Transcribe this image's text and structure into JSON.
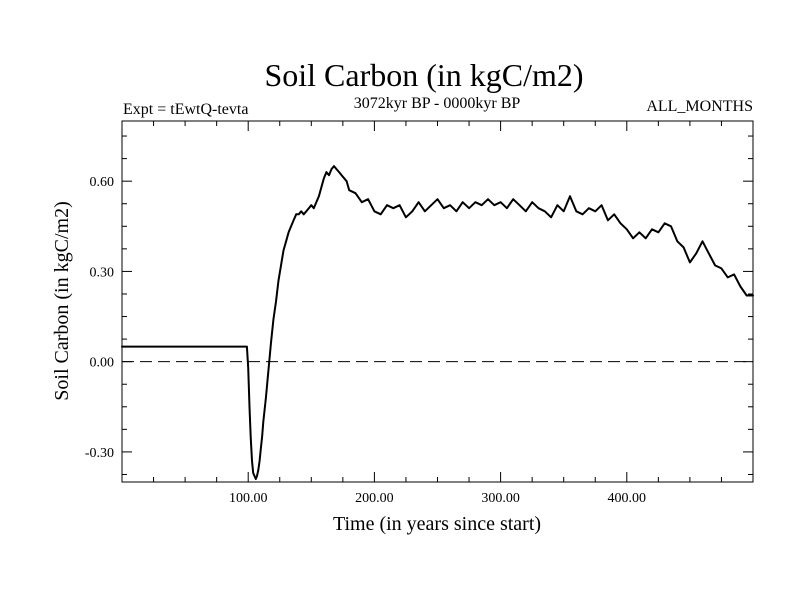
{
  "chart_data": {
    "type": "line",
    "title": "Soil Carbon (in kgC/m2)",
    "subtitle_left": "Expt = tEwtQ-tevta",
    "subtitle_center": "3072kyr BP - 0000kyr BP",
    "subtitle_right": "ALL_MONTHS",
    "xlabel": "Time (in years since start)",
    "ylabel": "Soil Carbon (in kgC/m2)",
    "xlim": [
      0,
      500
    ],
    "ylim": [
      -0.4,
      0.8
    ],
    "xticks": [
      100,
      200,
      300,
      400
    ],
    "xtick_labels": [
      "100.00",
      "200.00",
      "300.00",
      "400.00"
    ],
    "yticks": [
      -0.3,
      0.0,
      0.3,
      0.6
    ],
    "ytick_labels": [
      "-0.30",
      "0.00",
      "0.30",
      "0.60"
    ],
    "reference_line": {
      "y": 0.0,
      "style": "dashed"
    },
    "series": [
      {
        "name": "Soil Carbon",
        "x": [
          0,
          99,
          100,
          101,
          102,
          103,
          104,
          105,
          106,
          107,
          108,
          109,
          110,
          111,
          112,
          114,
          116,
          118,
          120,
          122,
          124,
          126,
          128,
          130,
          132,
          134,
          136,
          138,
          140,
          142,
          144,
          146,
          148,
          150,
          152,
          154,
          156,
          158,
          160,
          162,
          164,
          166,
          168,
          170,
          172,
          174,
          176,
          178,
          180,
          185,
          190,
          195,
          200,
          205,
          210,
          215,
          220,
          225,
          230,
          235,
          240,
          245,
          250,
          255,
          260,
          265,
          270,
          275,
          280,
          285,
          290,
          295,
          300,
          305,
          310,
          315,
          320,
          325,
          330,
          335,
          340,
          345,
          350,
          355,
          360,
          365,
          370,
          375,
          380,
          385,
          390,
          395,
          400,
          405,
          410,
          415,
          420,
          425,
          430,
          435,
          440,
          445,
          450,
          455,
          460,
          465,
          470,
          475,
          480,
          485,
          490,
          495,
          500
        ],
        "values": [
          0.05,
          0.05,
          -0.02,
          -0.15,
          -0.25,
          -0.33,
          -0.37,
          -0.38,
          -0.39,
          -0.38,
          -0.36,
          -0.33,
          -0.29,
          -0.25,
          -0.2,
          -0.12,
          -0.03,
          0.06,
          0.14,
          0.2,
          0.27,
          0.32,
          0.37,
          0.4,
          0.43,
          0.45,
          0.47,
          0.49,
          0.49,
          0.5,
          0.49,
          0.5,
          0.51,
          0.52,
          0.51,
          0.53,
          0.55,
          0.58,
          0.61,
          0.63,
          0.62,
          0.64,
          0.65,
          0.64,
          0.63,
          0.62,
          0.61,
          0.6,
          0.57,
          0.56,
          0.53,
          0.54,
          0.5,
          0.49,
          0.52,
          0.51,
          0.52,
          0.48,
          0.5,
          0.53,
          0.5,
          0.52,
          0.54,
          0.51,
          0.52,
          0.5,
          0.53,
          0.51,
          0.53,
          0.52,
          0.54,
          0.52,
          0.53,
          0.51,
          0.54,
          0.52,
          0.5,
          0.53,
          0.51,
          0.5,
          0.48,
          0.52,
          0.5,
          0.55,
          0.5,
          0.49,
          0.51,
          0.5,
          0.52,
          0.47,
          0.49,
          0.46,
          0.44,
          0.41,
          0.43,
          0.41,
          0.44,
          0.43,
          0.46,
          0.45,
          0.4,
          0.38,
          0.33,
          0.36,
          0.4,
          0.36,
          0.32,
          0.31,
          0.28,
          0.29,
          0.25,
          0.22,
          0.22
        ]
      }
    ]
  }
}
